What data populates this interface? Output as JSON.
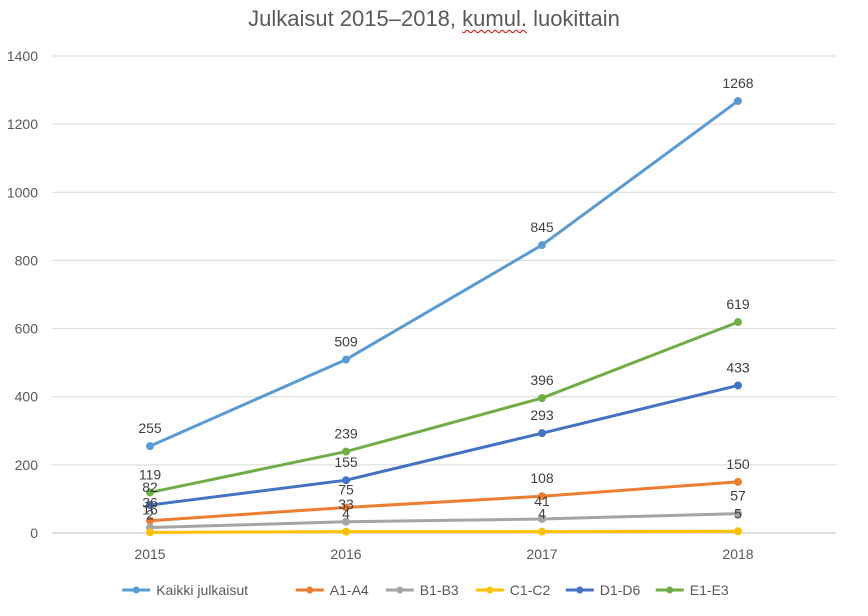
{
  "chart_data": {
    "type": "line",
    "title_parts": [
      "Julkaisut 2015–2018, ",
      "kumul.",
      " luokittain"
    ],
    "categories": [
      "2015",
      "2016",
      "2017",
      "2018"
    ],
    "ylim": [
      0,
      1400
    ],
    "yticks": [
      0,
      200,
      400,
      600,
      800,
      1000,
      1200,
      1400
    ],
    "grid": true,
    "legend": "bottom",
    "series": [
      {
        "name": "Kaikki julkaisut",
        "color": "#5B9BD5",
        "values": [
          255,
          509,
          845,
          1268
        ]
      },
      {
        "name": "A1-A4",
        "color": "#ED7D31",
        "values": [
          36,
          75,
          108,
          150
        ]
      },
      {
        "name": "B1-B3",
        "color": "#A5A5A5",
        "values": [
          16,
          33,
          41,
          57
        ]
      },
      {
        "name": "C1-C2",
        "color": "#FFC000",
        "values": [
          2,
          4,
          4,
          5
        ]
      },
      {
        "name": "D1-D6",
        "color": "#4472C4",
        "values": [
          82,
          155,
          293,
          433
        ]
      },
      {
        "name": "E1-E3",
        "color": "#70AD47",
        "values": [
          119,
          239,
          396,
          619
        ]
      }
    ]
  }
}
